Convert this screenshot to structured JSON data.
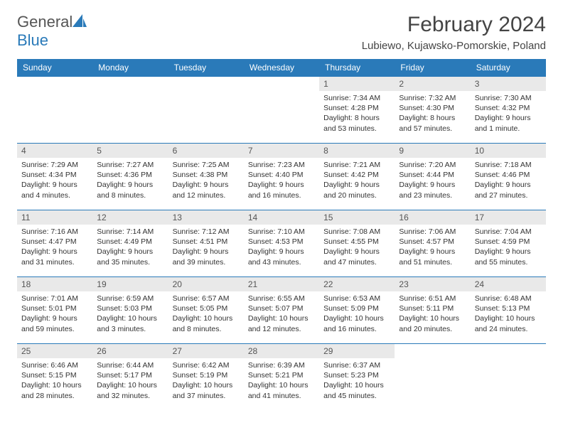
{
  "brand": {
    "name_a": "General",
    "name_b": "Blue"
  },
  "header": {
    "title": "February 2024",
    "location": "Lubiewo, Kujawsko-Pomorskie, Poland"
  },
  "colors": {
    "accent": "#2a7ab9",
    "header_text": "#ffffff",
    "daynum_bg": "#e9e9e9",
    "body_text": "#333333"
  },
  "calendar": {
    "columns": [
      "Sunday",
      "Monday",
      "Tuesday",
      "Wednesday",
      "Thursday",
      "Friday",
      "Saturday"
    ],
    "weeks": [
      [
        {
          "n": "",
          "sunrise": "",
          "sunset": "",
          "daylight": ""
        },
        {
          "n": "",
          "sunrise": "",
          "sunset": "",
          "daylight": ""
        },
        {
          "n": "",
          "sunrise": "",
          "sunset": "",
          "daylight": ""
        },
        {
          "n": "",
          "sunrise": "",
          "sunset": "",
          "daylight": ""
        },
        {
          "n": "1",
          "sunrise": "Sunrise: 7:34 AM",
          "sunset": "Sunset: 4:28 PM",
          "daylight": "Daylight: 8 hours and 53 minutes."
        },
        {
          "n": "2",
          "sunrise": "Sunrise: 7:32 AM",
          "sunset": "Sunset: 4:30 PM",
          "daylight": "Daylight: 8 hours and 57 minutes."
        },
        {
          "n": "3",
          "sunrise": "Sunrise: 7:30 AM",
          "sunset": "Sunset: 4:32 PM",
          "daylight": "Daylight: 9 hours and 1 minute."
        }
      ],
      [
        {
          "n": "4",
          "sunrise": "Sunrise: 7:29 AM",
          "sunset": "Sunset: 4:34 PM",
          "daylight": "Daylight: 9 hours and 4 minutes."
        },
        {
          "n": "5",
          "sunrise": "Sunrise: 7:27 AM",
          "sunset": "Sunset: 4:36 PM",
          "daylight": "Daylight: 9 hours and 8 minutes."
        },
        {
          "n": "6",
          "sunrise": "Sunrise: 7:25 AM",
          "sunset": "Sunset: 4:38 PM",
          "daylight": "Daylight: 9 hours and 12 minutes."
        },
        {
          "n": "7",
          "sunrise": "Sunrise: 7:23 AM",
          "sunset": "Sunset: 4:40 PM",
          "daylight": "Daylight: 9 hours and 16 minutes."
        },
        {
          "n": "8",
          "sunrise": "Sunrise: 7:21 AM",
          "sunset": "Sunset: 4:42 PM",
          "daylight": "Daylight: 9 hours and 20 minutes."
        },
        {
          "n": "9",
          "sunrise": "Sunrise: 7:20 AM",
          "sunset": "Sunset: 4:44 PM",
          "daylight": "Daylight: 9 hours and 23 minutes."
        },
        {
          "n": "10",
          "sunrise": "Sunrise: 7:18 AM",
          "sunset": "Sunset: 4:46 PM",
          "daylight": "Daylight: 9 hours and 27 minutes."
        }
      ],
      [
        {
          "n": "11",
          "sunrise": "Sunrise: 7:16 AM",
          "sunset": "Sunset: 4:47 PM",
          "daylight": "Daylight: 9 hours and 31 minutes."
        },
        {
          "n": "12",
          "sunrise": "Sunrise: 7:14 AM",
          "sunset": "Sunset: 4:49 PM",
          "daylight": "Daylight: 9 hours and 35 minutes."
        },
        {
          "n": "13",
          "sunrise": "Sunrise: 7:12 AM",
          "sunset": "Sunset: 4:51 PM",
          "daylight": "Daylight: 9 hours and 39 minutes."
        },
        {
          "n": "14",
          "sunrise": "Sunrise: 7:10 AM",
          "sunset": "Sunset: 4:53 PM",
          "daylight": "Daylight: 9 hours and 43 minutes."
        },
        {
          "n": "15",
          "sunrise": "Sunrise: 7:08 AM",
          "sunset": "Sunset: 4:55 PM",
          "daylight": "Daylight: 9 hours and 47 minutes."
        },
        {
          "n": "16",
          "sunrise": "Sunrise: 7:06 AM",
          "sunset": "Sunset: 4:57 PM",
          "daylight": "Daylight: 9 hours and 51 minutes."
        },
        {
          "n": "17",
          "sunrise": "Sunrise: 7:04 AM",
          "sunset": "Sunset: 4:59 PM",
          "daylight": "Daylight: 9 hours and 55 minutes."
        }
      ],
      [
        {
          "n": "18",
          "sunrise": "Sunrise: 7:01 AM",
          "sunset": "Sunset: 5:01 PM",
          "daylight": "Daylight: 9 hours and 59 minutes."
        },
        {
          "n": "19",
          "sunrise": "Sunrise: 6:59 AM",
          "sunset": "Sunset: 5:03 PM",
          "daylight": "Daylight: 10 hours and 3 minutes."
        },
        {
          "n": "20",
          "sunrise": "Sunrise: 6:57 AM",
          "sunset": "Sunset: 5:05 PM",
          "daylight": "Daylight: 10 hours and 8 minutes."
        },
        {
          "n": "21",
          "sunrise": "Sunrise: 6:55 AM",
          "sunset": "Sunset: 5:07 PM",
          "daylight": "Daylight: 10 hours and 12 minutes."
        },
        {
          "n": "22",
          "sunrise": "Sunrise: 6:53 AM",
          "sunset": "Sunset: 5:09 PM",
          "daylight": "Daylight: 10 hours and 16 minutes."
        },
        {
          "n": "23",
          "sunrise": "Sunrise: 6:51 AM",
          "sunset": "Sunset: 5:11 PM",
          "daylight": "Daylight: 10 hours and 20 minutes."
        },
        {
          "n": "24",
          "sunrise": "Sunrise: 6:48 AM",
          "sunset": "Sunset: 5:13 PM",
          "daylight": "Daylight: 10 hours and 24 minutes."
        }
      ],
      [
        {
          "n": "25",
          "sunrise": "Sunrise: 6:46 AM",
          "sunset": "Sunset: 5:15 PM",
          "daylight": "Daylight: 10 hours and 28 minutes."
        },
        {
          "n": "26",
          "sunrise": "Sunrise: 6:44 AM",
          "sunset": "Sunset: 5:17 PM",
          "daylight": "Daylight: 10 hours and 32 minutes."
        },
        {
          "n": "27",
          "sunrise": "Sunrise: 6:42 AM",
          "sunset": "Sunset: 5:19 PM",
          "daylight": "Daylight: 10 hours and 37 minutes."
        },
        {
          "n": "28",
          "sunrise": "Sunrise: 6:39 AM",
          "sunset": "Sunset: 5:21 PM",
          "daylight": "Daylight: 10 hours and 41 minutes."
        },
        {
          "n": "29",
          "sunrise": "Sunrise: 6:37 AM",
          "sunset": "Sunset: 5:23 PM",
          "daylight": "Daylight: 10 hours and 45 minutes."
        },
        {
          "n": "",
          "sunrise": "",
          "sunset": "",
          "daylight": ""
        },
        {
          "n": "",
          "sunrise": "",
          "sunset": "",
          "daylight": ""
        }
      ]
    ]
  }
}
